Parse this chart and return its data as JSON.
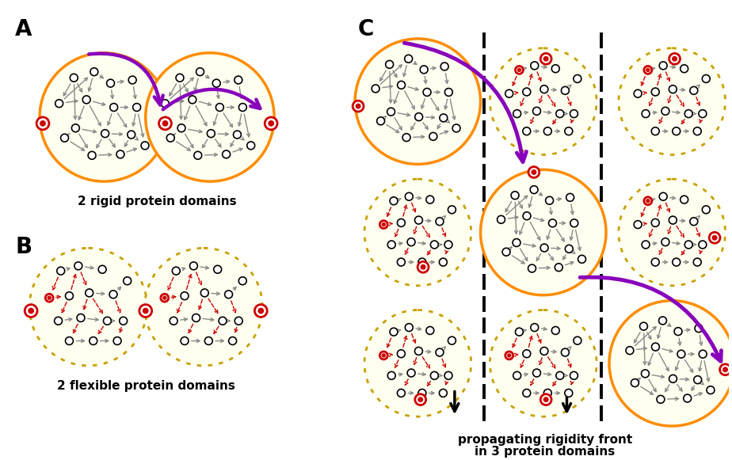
{
  "bg_color": "#ffffff",
  "rigid_fill": "#fffff0",
  "rigid_border": "#ff8c00",
  "flexible_fill": "#fffff0",
  "flexible_border": "#c8a000",
  "gray_arrow": "#888888",
  "red_arrow": "#cc0000",
  "red_node_color": "#cc0000",
  "purple_color": "#8800bb",
  "black": "#000000",
  "label_A": "A",
  "label_B": "B",
  "label_C": "C",
  "text_rigid": "2 rigid protein domains",
  "text_flexible": "2 flexible protein domains",
  "text_propagating_1": "propagating rigidity front",
  "text_propagating_2": "in 3 protein domains"
}
